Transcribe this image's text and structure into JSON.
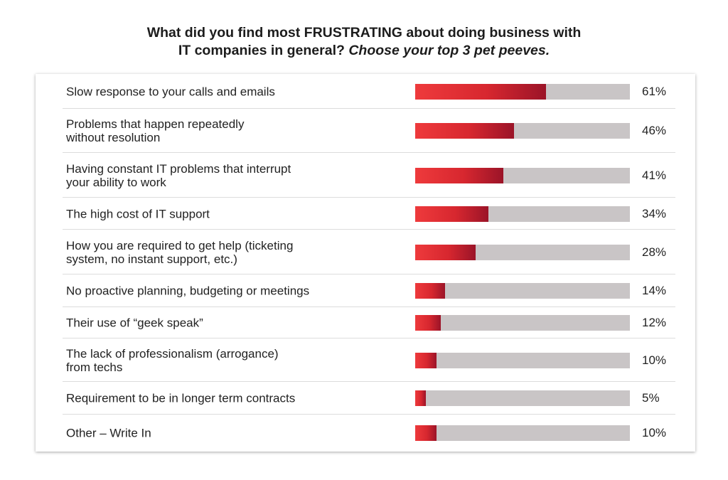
{
  "title": {
    "line1_pre": "What did you find most ",
    "line1_emph": "FRUSTRATING",
    "line1_post": " about doing business with",
    "line2_pre": "IT companies in general? ",
    "line2_ital": "Choose your top 3 pet peeves."
  },
  "chart_data": {
    "type": "bar",
    "orientation": "horizontal",
    "title": "What did you find most FRUSTRATING about doing business with IT companies in general? Choose your top 3 pet peeves.",
    "categories": [
      "Slow response to your calls and emails",
      "Problems that happen repeatedly without resolution",
      "Having constant IT problems that interrupt your ability to work",
      "The high cost of IT support",
      "How you are required to get help (ticketing system, no instant support, etc.)",
      "No proactive planning, budgeting or meetings",
      "Their use of “geek speak”",
      "The lack of professionalism (arrogance) from techs",
      "Requirement to be in longer term contracts",
      "Other – Write In"
    ],
    "label_lines": [
      [
        "Slow response to your calls and emails"
      ],
      [
        "Problems that happen repeatedly",
        "without resolution"
      ],
      [
        "Having constant IT problems that interrupt",
        "your ability to work"
      ],
      [
        "The high cost of IT support"
      ],
      [
        "How you are required to get help (ticketing",
        "system, no instant support, etc.)"
      ],
      [
        "No proactive planning, budgeting or meetings"
      ],
      [
        "Their use of “geek speak”"
      ],
      [
        "The lack of professionalism (arrogance)",
        "from techs"
      ],
      [
        "Requirement to be in longer term contracts"
      ],
      [
        "Other – Write In"
      ]
    ],
    "values": [
      61,
      46,
      41,
      34,
      28,
      14,
      12,
      10,
      5,
      10
    ],
    "value_labels": [
      "61%",
      "46%",
      "41%",
      "34%",
      "28%",
      "14%",
      "12%",
      "10%",
      "5%",
      "10%"
    ],
    "xlim": [
      0,
      100
    ],
    "unit": "%",
    "colors": {
      "bar_start": "#ee3a3c",
      "bar_end": "#9b1428",
      "track": "#c9c5c6",
      "divider": "#dcdcdc"
    },
    "grid": false,
    "legend": "none"
  }
}
